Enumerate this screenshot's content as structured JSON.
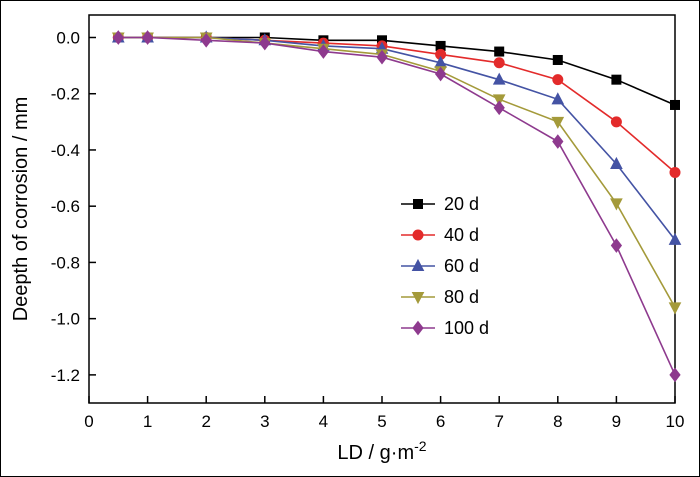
{
  "figure": {
    "background": "#ffffff",
    "border_color": "#000000",
    "axis_color": "#000000"
  },
  "chart_data": {
    "type": "line",
    "title": "",
    "xlabel": "LD / g·m⁻²",
    "xlabel_base": "LD / g·m",
    "xlabel_superscript": "-2",
    "ylabel": "Deepth of corrosion / mm",
    "xlim": [
      0,
      10
    ],
    "ylim": [
      -1.3,
      0.08
    ],
    "grid": false,
    "x_ticks": [
      0,
      1,
      2,
      3,
      4,
      5,
      6,
      7,
      8,
      9,
      10
    ],
    "x_tick_labels": [
      "0",
      "1",
      "2",
      "3",
      "4",
      "5",
      "6",
      "7",
      "8",
      "9",
      "10"
    ],
    "y_ticks": [
      0.0,
      -0.2,
      -0.4,
      -0.6,
      -0.8,
      -1.0,
      -1.2
    ],
    "y_tick_labels": [
      "0.0",
      "-0.2",
      "-0.4",
      "-0.6",
      "-0.8",
      "-1.0",
      "-1.2"
    ],
    "x": [
      0.5,
      1,
      2,
      3,
      4,
      5,
      6,
      7,
      8,
      9,
      10
    ],
    "series": [
      {
        "name": "20 d",
        "color": "#000000",
        "marker": "square",
        "values": [
          0,
          0,
          0,
          0,
          -0.01,
          -0.01,
          -0.03,
          -0.05,
          -0.08,
          -0.15,
          -0.24
        ]
      },
      {
        "name": "40 d",
        "color": "#e32b2b",
        "marker": "circle",
        "values": [
          0,
          0,
          0,
          -0.01,
          -0.02,
          -0.03,
          -0.06,
          -0.09,
          -0.15,
          -0.3,
          -0.48
        ]
      },
      {
        "name": "60 d",
        "color": "#4453a4",
        "marker": "triangle-up",
        "values": [
          0,
          0,
          0,
          -0.01,
          -0.03,
          -0.04,
          -0.09,
          -0.15,
          -0.22,
          -0.45,
          -0.72
        ]
      },
      {
        "name": "80 d",
        "color": "#a49a3a",
        "marker": "triangle-down",
        "values": [
          0,
          0,
          0,
          -0.02,
          -0.04,
          -0.06,
          -0.12,
          -0.22,
          -0.3,
          -0.59,
          -0.96
        ]
      },
      {
        "name": "100 d",
        "color": "#8e3a8e",
        "marker": "diamond",
        "values": [
          0,
          0,
          -0.01,
          -0.02,
          -0.05,
          -0.07,
          -0.13,
          -0.25,
          -0.37,
          -0.74,
          -1.2
        ]
      }
    ],
    "legend": {
      "position": "center-right",
      "frame": false,
      "labels": [
        "20 d",
        "40 d",
        "60 d",
        "80 d",
        "100 d"
      ]
    }
  }
}
